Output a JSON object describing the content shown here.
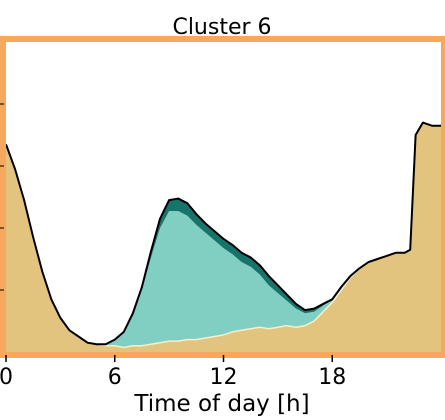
{
  "chart_data": {
    "type": "area",
    "title": "Cluster 6",
    "xlabel": "Time of day [h]",
    "ylabel": "",
    "xlim": [
      0,
      24
    ],
    "ylim": [
      0,
      1
    ],
    "x_ticks": [
      0,
      6,
      12,
      18
    ],
    "x_tick_labels": [
      "0",
      "6",
      "12",
      "18"
    ],
    "x": [
      0,
      0.5,
      1,
      1.5,
      2,
      2.5,
      3,
      3.5,
      4,
      4.5,
      5,
      5.5,
      6,
      6.5,
      7,
      7.5,
      8,
      8.5,
      9,
      9.5,
      10,
      10.5,
      11,
      11.5,
      12,
      12.5,
      13,
      13.5,
      14,
      14.5,
      15,
      15.5,
      16,
      16.5,
      17,
      17.5,
      18,
      18.5,
      19,
      19.5,
      20,
      20.5,
      21,
      21.5,
      22,
      22.3,
      22.6,
      23,
      23.5,
      24
    ],
    "series": [
      {
        "name": "",
        "color": "#e2c47e",
        "values": [
          0.67,
          0.59,
          0.49,
          0.37,
          0.26,
          0.17,
          0.11,
          0.07,
          0.05,
          0.03,
          0.025,
          0.02,
          0.02,
          0.015,
          0.02,
          0.02,
          0.025,
          0.03,
          0.035,
          0.035,
          0.04,
          0.04,
          0.045,
          0.05,
          0.055,
          0.065,
          0.07,
          0.075,
          0.08,
          0.075,
          0.08,
          0.085,
          0.08,
          0.085,
          0.1,
          0.13,
          0.16,
          0.2,
          0.24,
          0.27,
          0.29,
          0.3,
          0.31,
          0.32,
          0.32,
          0.33,
          0.7,
          0.74,
          0.73,
          0.73
        ]
      },
      {
        "name": "",
        "color": "#80cfc2",
        "values": [
          0,
          0,
          0,
          0,
          0,
          0,
          0,
          0,
          0,
          0,
          0,
          0.005,
          0.02,
          0.05,
          0.1,
          0.18,
          0.28,
          0.37,
          0.42,
          0.42,
          0.4,
          0.37,
          0.34,
          0.31,
          0.28,
          0.25,
          0.22,
          0.2,
          0.17,
          0.14,
          0.11,
          0.08,
          0.06,
          0.04,
          0.03,
          0.02,
          0.01,
          0.01,
          0.005,
          0,
          0,
          0,
          0,
          0,
          0,
          0,
          0,
          0,
          0,
          0
        ]
      },
      {
        "name": "",
        "color": "#17746a",
        "values": [
          0,
          0,
          0,
          0,
          0,
          0,
          0,
          0,
          0,
          0,
          0,
          0,
          0,
          0,
          0.005,
          0.01,
          0.02,
          0.03,
          0.035,
          0.04,
          0.04,
          0.035,
          0.03,
          0.03,
          0.03,
          0.03,
          0.03,
          0.03,
          0.03,
          0.03,
          0.025,
          0.02,
          0.015,
          0.01,
          0.01,
          0.005,
          0,
          0,
          0,
          0,
          0,
          0,
          0,
          0,
          0,
          0,
          0,
          0,
          0,
          0
        ]
      }
    ],
    "frame_color": "#f6a85e",
    "outline_color": "#000000",
    "grid": false,
    "legend": "none"
  }
}
